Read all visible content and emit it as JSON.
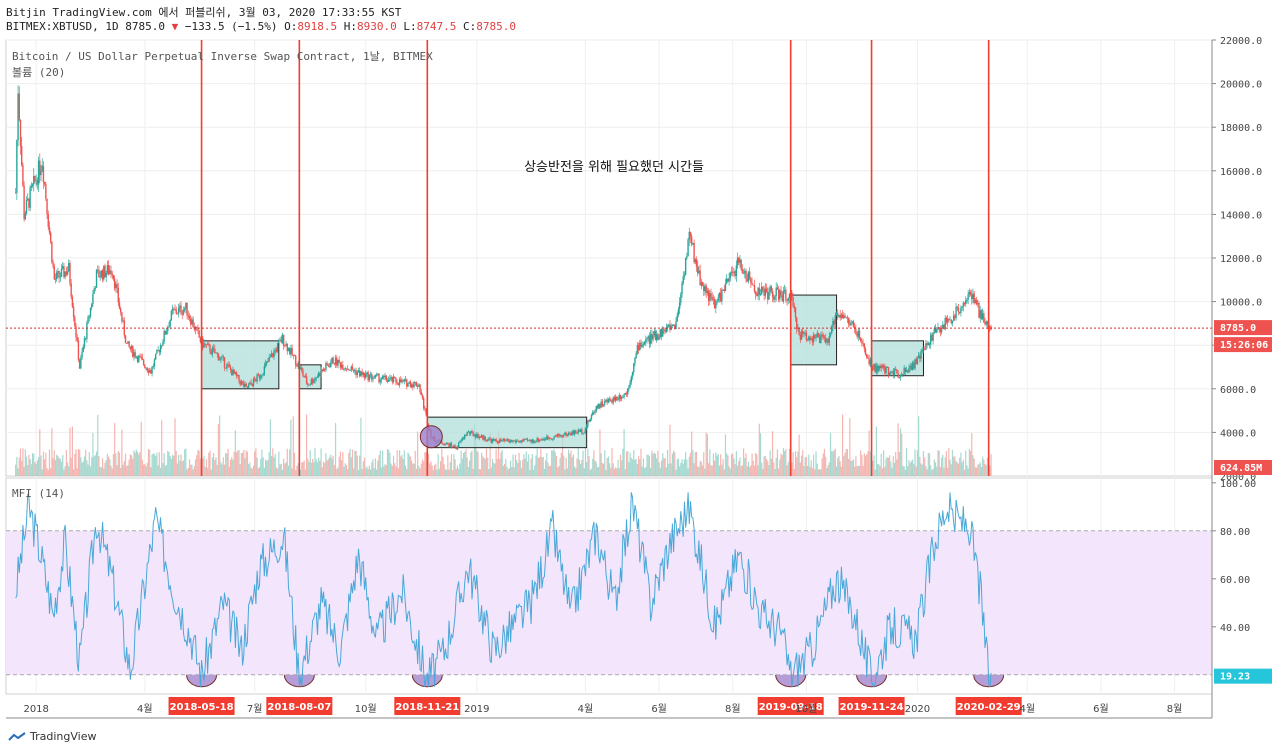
{
  "header": {
    "line1": "Bitjin TradingView.com 에서 퍼블리쉬, 3월 03, 2020 17:33:55 KST",
    "symbol": "BITMEX:XBTUSD, 1D 8785.0",
    "change": "−133.5 (−1.5%)",
    "ohlc_o": "O:8918.5",
    "ohlc_h": "H:8930.0",
    "ohlc_l": "L:8747.5",
    "ohlc_c": "C:8785.0"
  },
  "main_pane": {
    "title": "Bitcoin / US Dollar Perpetual Inverse Swap Contract, 1날, BITMEX",
    "volume_label": "볼륨 (20)",
    "annotation": "상승반전을 위해 필요했던 시간들",
    "price_badge": "8785.0",
    "time_badge": "15:26:06",
    "volume_badge": "624.85M"
  },
  "mfi_pane": {
    "label": "MFI (14)",
    "value_badge": "19.23"
  },
  "date_markers": [
    "2018-05-18",
    "2018-08-07",
    "2018-11-21",
    "2019-09-18",
    "2019-11-24",
    "2020-02-29"
  ],
  "footer": {
    "brand": "TradingView"
  },
  "colors": {
    "up": "#26a69a",
    "down": "#ef5350",
    "red_line": "#f23c2f",
    "box_fill": "#b2dfdb",
    "mfi_line": "#4aa8d8",
    "mfi_band": "#f3e5fb",
    "circle": "#9c7cc9"
  },
  "chart_data": [
    {
      "type": "candlestick",
      "title": "Bitcoin / US Dollar Perpetual Inverse Swap Contract, 1날, BITMEX",
      "x_ticks": [
        "2018",
        "4월",
        "7월",
        "10월",
        "2019",
        "4월",
        "6월",
        "8월",
        "10월",
        "2020",
        "4월",
        "6월",
        "8월"
      ],
      "y_ticks": [
        4000,
        6000,
        8000,
        10000,
        12000,
        14000,
        16000,
        18000,
        20000,
        22000
      ],
      "ylim": [
        2000,
        22000
      ],
      "approx_close_path": [
        [
          "2017-12-15",
          15000
        ],
        [
          "2017-12-17",
          19800
        ],
        [
          "2017-12-22",
          14000
        ],
        [
          "2018-01-06",
          16500
        ],
        [
          "2018-01-16",
          11000
        ],
        [
          "2018-01-28",
          11500
        ],
        [
          "2018-02-06",
          7000
        ],
        [
          "2018-02-20",
          11200
        ],
        [
          "2018-03-05",
          11500
        ],
        [
          "2018-03-17",
          8000
        ],
        [
          "2018-04-06",
          6800
        ],
        [
          "2018-04-24",
          9500
        ],
        [
          "2018-05-05",
          9700
        ],
        [
          "2018-05-18",
          8100
        ],
        [
          "2018-06-01",
          7500
        ],
        [
          "2018-06-24",
          6000
        ],
        [
          "2018-07-05",
          6600
        ],
        [
          "2018-07-24",
          8300
        ],
        [
          "2018-08-07",
          7000
        ],
        [
          "2018-08-14",
          6200
        ],
        [
          "2018-09-04",
          7300
        ],
        [
          "2018-09-30",
          6600
        ],
        [
          "2018-10-31",
          6300
        ],
        [
          "2018-11-14",
          6200
        ],
        [
          "2018-11-21",
          4500
        ],
        [
          "2018-11-25",
          3700
        ],
        [
          "2018-12-15",
          3300
        ],
        [
          "2018-12-24",
          4000
        ],
        [
          "2019-01-15",
          3600
        ],
        [
          "2019-02-15",
          3600
        ],
        [
          "2019-03-15",
          3900
        ],
        [
          "2019-03-31",
          4100
        ],
        [
          "2019-04-10",
          5200
        ],
        [
          "2019-05-05",
          5800
        ],
        [
          "2019-05-15",
          8000
        ],
        [
          "2019-05-31",
          8500
        ],
        [
          "2019-06-15",
          9000
        ],
        [
          "2019-06-26",
          13000
        ],
        [
          "2019-07-05",
          11000
        ],
        [
          "2019-07-17",
          9800
        ],
        [
          "2019-08-06",
          11800
        ],
        [
          "2019-08-20",
          10500
        ],
        [
          "2019-09-10",
          10300
        ],
        [
          "2019-09-18",
          10200
        ],
        [
          "2019-09-25",
          8500
        ],
        [
          "2019-10-20",
          8200
        ],
        [
          "2019-10-26",
          9600
        ],
        [
          "2019-11-10",
          8800
        ],
        [
          "2019-11-24",
          7000
        ],
        [
          "2019-12-17",
          6700
        ],
        [
          "2019-12-31",
          7200
        ],
        [
          "2020-01-14",
          8500
        ],
        [
          "2020-02-01",
          9400
        ],
        [
          "2020-02-13",
          10400
        ],
        [
          "2020-02-26",
          9000
        ],
        [
          "2020-03-03",
          8785
        ]
      ],
      "boxes": [
        {
          "from": "2018-05-18",
          "to": "2018-07-21",
          "low": 6000,
          "high": 8200
        },
        {
          "from": "2018-08-07",
          "to": "2018-08-25",
          "low": 6000,
          "high": 7100
        },
        {
          "from": "2018-11-21",
          "to": "2019-04-02",
          "low": 3300,
          "high": 4700
        },
        {
          "from": "2019-09-18",
          "to": "2019-10-26",
          "low": 7100,
          "high": 10300
        },
        {
          "from": "2019-11-24",
          "to": "2020-01-06",
          "low": 6600,
          "high": 8200
        }
      ],
      "last_price": 8785.0
    },
    {
      "type": "line",
      "title": "MFI (14)",
      "y_ticks": [
        40,
        60,
        80,
        100
      ],
      "ylim": [
        12,
        102
      ],
      "bands": [
        20,
        80
      ],
      "approx_values": [
        [
          "2017-12-15",
          55
        ],
        [
          "2017-12-26",
          90
        ],
        [
          "2018-01-05",
          70
        ],
        [
          "2018-01-15",
          45
        ],
        [
          "2018-01-25",
          75
        ],
        [
          "2018-02-06",
          25
        ],
        [
          "2018-02-20",
          85
        ],
        [
          "2018-03-05",
          60
        ],
        [
          "2018-03-20",
          22
        ],
        [
          "2018-04-10",
          85
        ],
        [
          "2018-04-25",
          55
        ],
        [
          "2018-05-10",
          35
        ],
        [
          "2018-05-18",
          20
        ],
        [
          "2018-06-05",
          50
        ],
        [
          "2018-06-20",
          30
        ],
        [
          "2018-07-05",
          65
        ],
        [
          "2018-07-25",
          78
        ],
        [
          "2018-08-07",
          20
        ],
        [
          "2018-08-25",
          50
        ],
        [
          "2018-09-10",
          30
        ],
        [
          "2018-09-25",
          70
        ],
        [
          "2018-10-10",
          35
        ],
        [
          "2018-10-31",
          55
        ],
        [
          "2018-11-21",
          18
        ],
        [
          "2018-12-05",
          30
        ],
        [
          "2018-12-25",
          65
        ],
        [
          "2019-01-15",
          30
        ],
        [
          "2019-02-15",
          50
        ],
        [
          "2019-03-05",
          80
        ],
        [
          "2019-03-20",
          45
        ],
        [
          "2019-04-10",
          80
        ],
        [
          "2019-04-25",
          50
        ],
        [
          "2019-05-10",
          92
        ],
        [
          "2019-05-25",
          50
        ],
        [
          "2019-06-10",
          75
        ],
        [
          "2019-06-26",
          90
        ],
        [
          "2019-07-17",
          40
        ],
        [
          "2019-08-06",
          70
        ],
        [
          "2019-08-25",
          45
        ],
        [
          "2019-09-10",
          38
        ],
        [
          "2019-09-18",
          20
        ],
        [
          "2019-10-05",
          30
        ],
        [
          "2019-10-26",
          60
        ],
        [
          "2019-11-10",
          45
        ],
        [
          "2019-11-24",
          18
        ],
        [
          "2019-12-10",
          40
        ],
        [
          "2019-12-31",
          35
        ],
        [
          "2020-01-15",
          75
        ],
        [
          "2020-01-25",
          90
        ],
        [
          "2020-02-01",
          85
        ],
        [
          "2020-02-13",
          82
        ],
        [
          "2020-02-22",
          55
        ],
        [
          "2020-02-29",
          19
        ],
        [
          "2020-03-03",
          19.23
        ]
      ],
      "last_value": 19.23
    }
  ]
}
